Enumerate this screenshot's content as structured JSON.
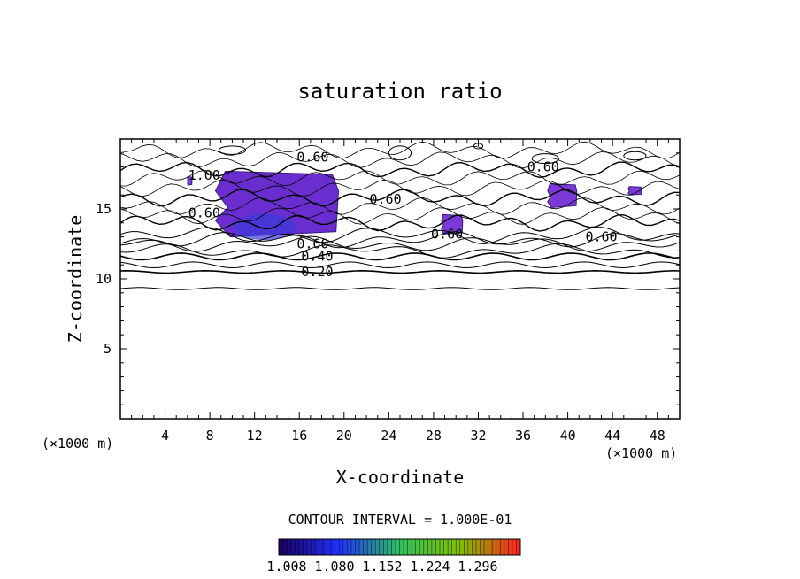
{
  "chart_data": {
    "type": "contour",
    "title": "saturation ratio",
    "xlabel": "X-coordinate",
    "ylabel": "Z-coordinate",
    "x_unit_left": "(×1000 m)",
    "x_unit_right": "(×1000 m)",
    "xlim": [
      0,
      50
    ],
    "ylim": [
      0,
      20
    ],
    "xticks": [
      4,
      8,
      12,
      16,
      20,
      24,
      28,
      32,
      36,
      40,
      44,
      48
    ],
    "yticks": [
      5,
      10,
      15
    ],
    "contour_interval_label": "CONTOUR INTERVAL = 1.000E-01",
    "contour_labels": [
      {
        "text": "0.20",
        "x": 17.6,
        "z": 10.5
      },
      {
        "text": "0.40",
        "x": 17.6,
        "z": 11.6
      },
      {
        "text": "0.60",
        "x": 17.2,
        "z": 12.5
      },
      {
        "text": "0.60",
        "x": 17.2,
        "z": 18.7
      },
      {
        "text": "0.60",
        "x": 7.5,
        "z": 14.7
      },
      {
        "text": "1.00",
        "x": 7.5,
        "z": 17.4
      },
      {
        "text": "0.60",
        "x": 23.7,
        "z": 15.7
      },
      {
        "text": "0.60",
        "x": 29.2,
        "z": 13.2
      },
      {
        "text": "0.60",
        "x": 37.8,
        "z": 18.0
      },
      {
        "text": "0.60",
        "x": 43.0,
        "z": 13.0
      }
    ],
    "supersaturated_regions": [
      {
        "x": [
          8.5,
          19.5
        ],
        "z": [
          13.0,
          17.7
        ],
        "value": 1.03
      },
      {
        "x": [
          28.7,
          30.6
        ],
        "z": [
          13.2,
          14.6
        ],
        "value": 1.02
      },
      {
        "x": [
          38.2,
          40.8
        ],
        "z": [
          15.1,
          16.8
        ],
        "value": 1.02
      },
      {
        "x": [
          45.4,
          46.6
        ],
        "z": [
          16.0,
          16.6
        ],
        "value": 1.01
      },
      {
        "x": [
          6.0,
          6.4
        ],
        "z": [
          16.7,
          17.3
        ],
        "value": 1.01
      }
    ],
    "colorbar": {
      "ticks": [
        "1.008",
        "1.080",
        "1.152",
        "1.224",
        "1.296"
      ],
      "colors": [
        "#1a0060",
        "#2030ff",
        "#30c060",
        "#80c000",
        "#ff2020"
      ]
    }
  }
}
